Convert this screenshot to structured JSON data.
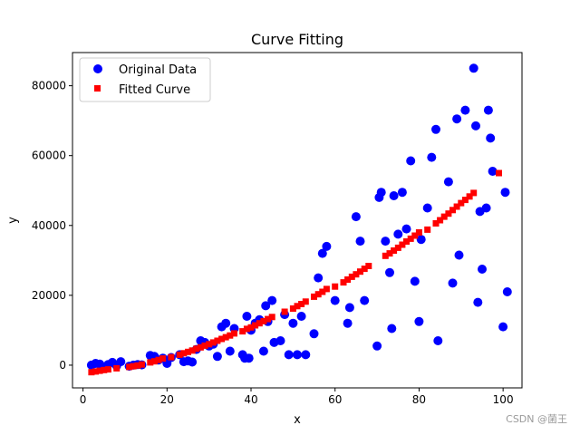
{
  "watermark": "CSDN @菌王",
  "chart_data": {
    "type": "scatter",
    "title": "Curve Fitting",
    "xlabel": "x",
    "ylabel": "y",
    "xlim": [
      -2.5,
      104.5
    ],
    "ylim": [
      -6500,
      89500
    ],
    "xticks": [
      0,
      20,
      40,
      60,
      80,
      100
    ],
    "yticks": [
      0,
      20000,
      40000,
      60000,
      80000
    ],
    "grid": false,
    "legend": "top-left",
    "series": [
      {
        "name": "Original Data",
        "marker": "circle",
        "color": "#0000ff",
        "points": [
          [
            2,
            0
          ],
          [
            3,
            500
          ],
          [
            4,
            300
          ],
          [
            5,
            -500
          ],
          [
            6,
            200
          ],
          [
            7,
            800
          ],
          [
            8,
            -200
          ],
          [
            9,
            1000
          ],
          [
            11,
            -300
          ],
          [
            12,
            0
          ],
          [
            13,
            200
          ],
          [
            14,
            100
          ],
          [
            16,
            2800
          ],
          [
            17,
            2500
          ],
          [
            18,
            1500
          ],
          [
            19,
            2000
          ],
          [
            20,
            500
          ],
          [
            21,
            2200
          ],
          [
            23,
            3000
          ],
          [
            24,
            1000
          ],
          [
            25,
            1200
          ],
          [
            26,
            900
          ],
          [
            27,
            4500
          ],
          [
            28,
            7000
          ],
          [
            29,
            6500
          ],
          [
            30,
            5500
          ],
          [
            31,
            6000
          ],
          [
            32,
            2500
          ],
          [
            33,
            11000
          ],
          [
            34,
            12000
          ],
          [
            35,
            4000
          ],
          [
            36,
            10500
          ],
          [
            38,
            3000
          ],
          [
            38.5,
            2000
          ],
          [
            39,
            14000
          ],
          [
            39.5,
            2000
          ],
          [
            40,
            10000
          ],
          [
            41,
            12000
          ],
          [
            42,
            13000
          ],
          [
            43,
            4000
          ],
          [
            43.5,
            17000
          ],
          [
            44,
            12500
          ],
          [
            45,
            18500
          ],
          [
            45.5,
            6500
          ],
          [
            47,
            7000
          ],
          [
            48,
            14500
          ],
          [
            49,
            3000
          ],
          [
            50,
            12000
          ],
          [
            51,
            3000
          ],
          [
            52,
            14000
          ],
          [
            53,
            3000
          ],
          [
            55,
            9000
          ],
          [
            56,
            25000
          ],
          [
            57,
            32000
          ],
          [
            58,
            34000
          ],
          [
            60,
            18500
          ],
          [
            63,
            12000
          ],
          [
            63.5,
            16500
          ],
          [
            65,
            42500
          ],
          [
            66,
            35500
          ],
          [
            67,
            18500
          ],
          [
            70,
            5500
          ],
          [
            70.5,
            48000
          ],
          [
            71,
            49500
          ],
          [
            72,
            35500
          ],
          [
            73,
            26500
          ],
          [
            73.5,
            10500
          ],
          [
            74,
            48500
          ],
          [
            75,
            37500
          ],
          [
            76,
            49500
          ],
          [
            77,
            39000
          ],
          [
            78,
            58500
          ],
          [
            79,
            24000
          ],
          [
            80,
            12500
          ],
          [
            80.5,
            36000
          ],
          [
            82,
            45000
          ],
          [
            83,
            59500
          ],
          [
            84,
            67500
          ],
          [
            84.5,
            7000
          ],
          [
            87,
            52500
          ],
          [
            88,
            23500
          ],
          [
            89,
            70500
          ],
          [
            89.5,
            31500
          ],
          [
            91,
            73000
          ],
          [
            93,
            85000
          ],
          [
            93.5,
            68500
          ],
          [
            94,
            18000
          ],
          [
            94.5,
            44000
          ],
          [
            95,
            27500
          ],
          [
            96,
            45000
          ],
          [
            96.5,
            73000
          ],
          [
            97,
            65000
          ],
          [
            97.5,
            55500
          ],
          [
            100,
            11000
          ],
          [
            100.5,
            49500
          ],
          [
            101,
            21000
          ]
        ]
      },
      {
        "name": "Fitted Curve",
        "marker": "square",
        "color": "#ff0000",
        "points": [
          [
            2,
            -2000
          ],
          [
            3,
            -1800
          ],
          [
            4,
            -1600
          ],
          [
            5,
            -1400
          ],
          [
            6,
            -1200
          ],
          [
            8,
            -900
          ],
          [
            11,
            -500
          ],
          [
            12,
            -300
          ],
          [
            13,
            -100
          ],
          [
            14,
            200
          ],
          [
            16,
            800
          ],
          [
            17,
            1100
          ],
          [
            18,
            1500
          ],
          [
            19,
            1900
          ],
          [
            21,
            2300
          ],
          [
            23,
            3000
          ],
          [
            24,
            3400
          ],
          [
            25,
            3800
          ],
          [
            26,
            4200
          ],
          [
            27,
            4700
          ],
          [
            28,
            5100
          ],
          [
            29,
            5600
          ],
          [
            30,
            6000
          ],
          [
            31,
            6500
          ],
          [
            32,
            7000
          ],
          [
            33,
            7500
          ],
          [
            34,
            8000
          ],
          [
            35,
            8500
          ],
          [
            36,
            9100
          ],
          [
            38,
            9700
          ],
          [
            39,
            10400
          ],
          [
            40,
            10800
          ],
          [
            41,
            11400
          ],
          [
            42,
            12000
          ],
          [
            43,
            12600
          ],
          [
            44,
            13200
          ],
          [
            45,
            13800
          ],
          [
            48,
            15300
          ],
          [
            50,
            16200
          ],
          [
            51,
            16900
          ],
          [
            52,
            17500
          ],
          [
            53,
            18200
          ],
          [
            55,
            19600
          ],
          [
            56,
            20300
          ],
          [
            57,
            21000
          ],
          [
            58,
            21800
          ],
          [
            60,
            22500
          ],
          [
            62,
            23700
          ],
          [
            63,
            24500
          ],
          [
            64,
            25300
          ],
          [
            65,
            26000
          ],
          [
            66,
            26800
          ],
          [
            67,
            27600
          ],
          [
            68,
            28400
          ],
          [
            72,
            31300
          ],
          [
            73,
            32000
          ],
          [
            74,
            32800
          ],
          [
            75,
            33600
          ],
          [
            76,
            34500
          ],
          [
            77,
            35400
          ],
          [
            78,
            36200
          ],
          [
            79,
            37100
          ],
          [
            80,
            38000
          ],
          [
            82,
            38800
          ],
          [
            84,
            40600
          ],
          [
            85,
            41500
          ],
          [
            86,
            42500
          ],
          [
            87,
            43400
          ],
          [
            88,
            44400
          ],
          [
            89,
            45400
          ],
          [
            90,
            46400
          ],
          [
            91,
            47300
          ],
          [
            92,
            48300
          ],
          [
            93,
            49300
          ],
          [
            99,
            55000
          ]
        ]
      }
    ]
  }
}
